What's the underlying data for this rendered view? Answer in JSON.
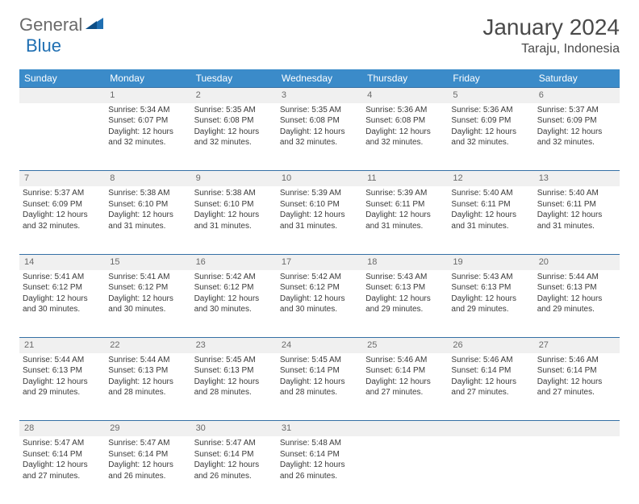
{
  "logo": {
    "text1": "General",
    "text2": "Blue"
  },
  "title": "January 2024",
  "location": "Taraju, Indonesia",
  "colors": {
    "header_bg": "#3b8bc9",
    "header_text": "#ffffff",
    "daynum_bg": "#f0f0f0",
    "daynum_text": "#6a6a6a",
    "row_divider": "#3570a5",
    "body_text": "#3a3a3a",
    "logo_gray": "#6a6a6a",
    "logo_blue": "#1f6fb2"
  },
  "weekdays": [
    "Sunday",
    "Monday",
    "Tuesday",
    "Wednesday",
    "Thursday",
    "Friday",
    "Saturday"
  ],
  "start_offset": 1,
  "days": [
    {
      "n": 1,
      "sunrise": "5:34 AM",
      "sunset": "6:07 PM",
      "daylight": "12 hours and 32 minutes."
    },
    {
      "n": 2,
      "sunrise": "5:35 AM",
      "sunset": "6:08 PM",
      "daylight": "12 hours and 32 minutes."
    },
    {
      "n": 3,
      "sunrise": "5:35 AM",
      "sunset": "6:08 PM",
      "daylight": "12 hours and 32 minutes."
    },
    {
      "n": 4,
      "sunrise": "5:36 AM",
      "sunset": "6:08 PM",
      "daylight": "12 hours and 32 minutes."
    },
    {
      "n": 5,
      "sunrise": "5:36 AM",
      "sunset": "6:09 PM",
      "daylight": "12 hours and 32 minutes."
    },
    {
      "n": 6,
      "sunrise": "5:37 AM",
      "sunset": "6:09 PM",
      "daylight": "12 hours and 32 minutes."
    },
    {
      "n": 7,
      "sunrise": "5:37 AM",
      "sunset": "6:09 PM",
      "daylight": "12 hours and 32 minutes."
    },
    {
      "n": 8,
      "sunrise": "5:38 AM",
      "sunset": "6:10 PM",
      "daylight": "12 hours and 31 minutes."
    },
    {
      "n": 9,
      "sunrise": "5:38 AM",
      "sunset": "6:10 PM",
      "daylight": "12 hours and 31 minutes."
    },
    {
      "n": 10,
      "sunrise": "5:39 AM",
      "sunset": "6:10 PM",
      "daylight": "12 hours and 31 minutes."
    },
    {
      "n": 11,
      "sunrise": "5:39 AM",
      "sunset": "6:11 PM",
      "daylight": "12 hours and 31 minutes."
    },
    {
      "n": 12,
      "sunrise": "5:40 AM",
      "sunset": "6:11 PM",
      "daylight": "12 hours and 31 minutes."
    },
    {
      "n": 13,
      "sunrise": "5:40 AM",
      "sunset": "6:11 PM",
      "daylight": "12 hours and 31 minutes."
    },
    {
      "n": 14,
      "sunrise": "5:41 AM",
      "sunset": "6:12 PM",
      "daylight": "12 hours and 30 minutes."
    },
    {
      "n": 15,
      "sunrise": "5:41 AM",
      "sunset": "6:12 PM",
      "daylight": "12 hours and 30 minutes."
    },
    {
      "n": 16,
      "sunrise": "5:42 AM",
      "sunset": "6:12 PM",
      "daylight": "12 hours and 30 minutes."
    },
    {
      "n": 17,
      "sunrise": "5:42 AM",
      "sunset": "6:12 PM",
      "daylight": "12 hours and 30 minutes."
    },
    {
      "n": 18,
      "sunrise": "5:43 AM",
      "sunset": "6:13 PM",
      "daylight": "12 hours and 29 minutes."
    },
    {
      "n": 19,
      "sunrise": "5:43 AM",
      "sunset": "6:13 PM",
      "daylight": "12 hours and 29 minutes."
    },
    {
      "n": 20,
      "sunrise": "5:44 AM",
      "sunset": "6:13 PM",
      "daylight": "12 hours and 29 minutes."
    },
    {
      "n": 21,
      "sunrise": "5:44 AM",
      "sunset": "6:13 PM",
      "daylight": "12 hours and 29 minutes."
    },
    {
      "n": 22,
      "sunrise": "5:44 AM",
      "sunset": "6:13 PM",
      "daylight": "12 hours and 28 minutes."
    },
    {
      "n": 23,
      "sunrise": "5:45 AM",
      "sunset": "6:13 PM",
      "daylight": "12 hours and 28 minutes."
    },
    {
      "n": 24,
      "sunrise": "5:45 AM",
      "sunset": "6:14 PM",
      "daylight": "12 hours and 28 minutes."
    },
    {
      "n": 25,
      "sunrise": "5:46 AM",
      "sunset": "6:14 PM",
      "daylight": "12 hours and 27 minutes."
    },
    {
      "n": 26,
      "sunrise": "5:46 AM",
      "sunset": "6:14 PM",
      "daylight": "12 hours and 27 minutes."
    },
    {
      "n": 27,
      "sunrise": "5:46 AM",
      "sunset": "6:14 PM",
      "daylight": "12 hours and 27 minutes."
    },
    {
      "n": 28,
      "sunrise": "5:47 AM",
      "sunset": "6:14 PM",
      "daylight": "12 hours and 27 minutes."
    },
    {
      "n": 29,
      "sunrise": "5:47 AM",
      "sunset": "6:14 PM",
      "daylight": "12 hours and 26 minutes."
    },
    {
      "n": 30,
      "sunrise": "5:47 AM",
      "sunset": "6:14 PM",
      "daylight": "12 hours and 26 minutes."
    },
    {
      "n": 31,
      "sunrise": "5:48 AM",
      "sunset": "6:14 PM",
      "daylight": "12 hours and 26 minutes."
    }
  ],
  "labels": {
    "sunrise": "Sunrise:",
    "sunset": "Sunset:",
    "daylight": "Daylight:"
  }
}
